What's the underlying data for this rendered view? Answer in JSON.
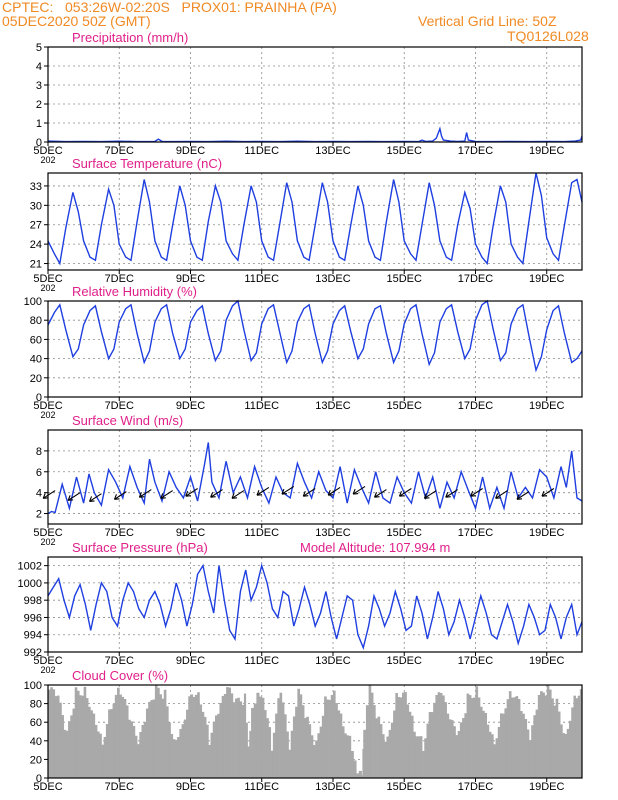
{
  "header": {
    "line1": "CPTEC:   053:26W-02:20S   PROX01: PRAINHA (PA)",
    "line2": "05DEC2020 50Z (GMT)",
    "grid_note": "Vertical Grid Line: 50Z",
    "run_id": "TQ0126L028"
  },
  "colors": {
    "series": "#1f3fe0",
    "panel_title": "#e0208a",
    "header": "#f08a24",
    "cloud_fill": "#a9a9a9",
    "grid": "#8c8c8c"
  },
  "x_axis": {
    "ticks": [
      {
        "day": 5,
        "label": "5DEC"
      },
      {
        "day": 7,
        "label": "7DEC"
      },
      {
        "day": 9,
        "label": "9DEC"
      },
      {
        "day": 11,
        "label": "11DEC"
      },
      {
        "day": 13,
        "label": "13DEC"
      },
      {
        "day": 15,
        "label": "15DEC"
      },
      {
        "day": 17,
        "label": "17DEC"
      },
      {
        "day": 19,
        "label": "19DEC"
      }
    ],
    "range_days": [
      5.0,
      19.99
    ],
    "partial_label": "202"
  },
  "chart_data": [
    {
      "type": "line",
      "title": "Precipitation (mm/h)",
      "ylim": [
        0,
        5
      ],
      "yticks": [
        0,
        1,
        2,
        3,
        4,
        5
      ],
      "grid": true,
      "x": [
        5.0,
        5.5,
        6.0,
        6.5,
        7.0,
        7.5,
        8.0,
        8.1,
        8.2,
        8.5,
        9.0,
        9.5,
        10.0,
        10.5,
        11.0,
        11.5,
        12.0,
        12.5,
        13.0,
        13.5,
        14.0,
        14.5,
        15.0,
        15.4,
        15.5,
        15.6,
        15.8,
        15.9,
        16.0,
        16.05,
        16.1,
        16.3,
        16.5,
        16.7,
        16.75,
        16.8,
        17.0,
        17.5,
        18.0,
        18.5,
        19.0,
        19.5,
        19.8,
        19.95,
        19.99
      ],
      "y": [
        0.05,
        0.02,
        0.03,
        0.02,
        0.04,
        0.02,
        0.03,
        0.15,
        0.03,
        0.02,
        0.03,
        0.02,
        0.04,
        0.02,
        0.03,
        0.02,
        0.04,
        0.02,
        0.03,
        0.02,
        0.03,
        0.02,
        0.03,
        0.02,
        0.1,
        0.03,
        0.05,
        0.2,
        0.7,
        0.3,
        0.1,
        0.05,
        0.03,
        0.05,
        0.5,
        0.1,
        0.03,
        0.02,
        0.03,
        0.02,
        0.03,
        0.02,
        0.05,
        0.1,
        0.3
      ]
    },
    {
      "type": "line",
      "title": "Surface Temperature (nC)",
      "ylim": [
        20,
        35
      ],
      "yticks": [
        21,
        24,
        27,
        30,
        33
      ],
      "grid": true,
      "x": [
        5.0,
        5.18,
        5.33,
        5.5,
        5.7,
        5.85,
        6.0,
        6.18,
        6.33,
        6.5,
        6.7,
        6.85,
        7.0,
        7.18,
        7.33,
        7.5,
        7.7,
        7.85,
        8.0,
        8.18,
        8.33,
        8.5,
        8.7,
        8.85,
        9.0,
        9.18,
        9.33,
        9.5,
        9.7,
        9.85,
        10.0,
        10.18,
        10.33,
        10.5,
        10.7,
        10.85,
        11.0,
        11.18,
        11.33,
        11.5,
        11.7,
        11.85,
        12.0,
        12.18,
        12.33,
        12.5,
        12.7,
        12.85,
        13.0,
        13.18,
        13.33,
        13.5,
        13.7,
        13.85,
        14.0,
        14.18,
        14.33,
        14.5,
        14.7,
        14.85,
        15.0,
        15.18,
        15.33,
        15.5,
        15.7,
        15.85,
        16.0,
        16.18,
        16.33,
        16.5,
        16.7,
        16.85,
        17.0,
        17.18,
        17.33,
        17.5,
        17.7,
        17.85,
        18.0,
        18.18,
        18.33,
        18.5,
        18.7,
        18.85,
        19.0,
        19.18,
        19.33,
        19.5,
        19.7,
        19.85,
        19.99
      ],
      "y": [
        24.5,
        22.5,
        21.0,
        26.5,
        32.0,
        29.0,
        24.5,
        22.0,
        21.5,
        27.0,
        32.5,
        30.0,
        24.0,
        22.0,
        21.5,
        27.5,
        34.0,
        30.5,
        24.5,
        22.0,
        21.5,
        27.0,
        33.0,
        30.0,
        24.5,
        22.0,
        21.5,
        27.5,
        33.0,
        30.5,
        24.5,
        22.5,
        21.5,
        27.0,
        33.0,
        30.5,
        24.5,
        22.0,
        21.5,
        27.0,
        33.5,
        30.5,
        24.5,
        22.0,
        21.5,
        27.0,
        33.5,
        30.5,
        24.5,
        22.0,
        21.5,
        27.0,
        33.0,
        30.0,
        24.5,
        22.0,
        21.5,
        27.5,
        34.0,
        30.5,
        24.5,
        22.5,
        21.5,
        27.0,
        33.5,
        30.0,
        24.5,
        22.0,
        21.5,
        27.0,
        32.0,
        29.5,
        24.0,
        22.0,
        21.0,
        27.0,
        33.0,
        30.5,
        24.0,
        22.0,
        21.0,
        27.5,
        35.0,
        31.5,
        25.0,
        22.5,
        21.5,
        27.0,
        33.5,
        34.0,
        30.5
      ]
    },
    {
      "type": "line",
      "title": "Relative Humidity (%)",
      "ylim": [
        0,
        100
      ],
      "yticks": [
        0,
        20,
        40,
        60,
        80,
        100
      ],
      "grid": true,
      "x": [
        5.0,
        5.18,
        5.33,
        5.5,
        5.7,
        5.85,
        6.0,
        6.18,
        6.33,
        6.5,
        6.7,
        6.85,
        7.0,
        7.18,
        7.33,
        7.5,
        7.7,
        7.85,
        8.0,
        8.18,
        8.33,
        8.5,
        8.7,
        8.85,
        9.0,
        9.18,
        9.33,
        9.5,
        9.7,
        9.85,
        10.0,
        10.18,
        10.33,
        10.5,
        10.7,
        10.85,
        11.0,
        11.18,
        11.33,
        11.5,
        11.7,
        11.85,
        12.0,
        12.18,
        12.33,
        12.5,
        12.7,
        12.85,
        13.0,
        13.18,
        13.33,
        13.5,
        13.7,
        13.85,
        14.0,
        14.18,
        14.33,
        14.5,
        14.7,
        14.85,
        15.0,
        15.18,
        15.33,
        15.5,
        15.7,
        15.85,
        16.0,
        16.18,
        16.33,
        16.5,
        16.7,
        16.85,
        17.0,
        17.18,
        17.33,
        17.5,
        17.7,
        17.85,
        18.0,
        18.18,
        18.33,
        18.5,
        18.7,
        18.85,
        19.0,
        19.18,
        19.33,
        19.5,
        19.7,
        19.85,
        19.99
      ],
      "y": [
        75,
        88,
        96,
        70,
        42,
        50,
        75,
        90,
        95,
        68,
        40,
        50,
        78,
        92,
        96,
        66,
        36,
        48,
        78,
        92,
        96,
        66,
        40,
        50,
        78,
        90,
        95,
        66,
        38,
        48,
        80,
        95,
        100,
        70,
        38,
        46,
        76,
        92,
        96,
        68,
        36,
        48,
        78,
        92,
        96,
        66,
        36,
        48,
        76,
        90,
        95,
        68,
        40,
        50,
        76,
        92,
        95,
        66,
        36,
        48,
        76,
        92,
        96,
        66,
        34,
        46,
        78,
        92,
        96,
        68,
        40,
        50,
        80,
        96,
        100,
        70,
        38,
        46,
        76,
        92,
        96,
        64,
        28,
        42,
        70,
        90,
        95,
        66,
        36,
        40,
        48
      ]
    },
    {
      "type": "line",
      "title": "Surface Wind (m/s)",
      "ylim": [
        1,
        10
      ],
      "yticks": [
        2,
        4,
        6,
        8
      ],
      "grid": true,
      "x": [
        5.0,
        5.1,
        5.2,
        5.4,
        5.6,
        5.8,
        6.0,
        6.15,
        6.3,
        6.5,
        6.7,
        6.9,
        7.1,
        7.3,
        7.5,
        7.7,
        7.85,
        8.0,
        8.2,
        8.4,
        8.6,
        8.8,
        9.0,
        9.2,
        9.4,
        9.5,
        9.6,
        9.8,
        10.0,
        10.2,
        10.4,
        10.6,
        10.8,
        11.0,
        11.2,
        11.4,
        11.6,
        11.8,
        12.0,
        12.2,
        12.4,
        12.6,
        12.8,
        13.0,
        13.2,
        13.4,
        13.6,
        13.8,
        14.0,
        14.2,
        14.4,
        14.6,
        14.8,
        15.0,
        15.2,
        15.4,
        15.6,
        15.8,
        16.0,
        16.2,
        16.4,
        16.6,
        16.8,
        17.0,
        17.2,
        17.4,
        17.6,
        17.8,
        18.0,
        18.2,
        18.4,
        18.6,
        18.8,
        19.0,
        19.2,
        19.4,
        19.55,
        19.7,
        19.85,
        19.99
      ],
      "y": [
        2.0,
        2.2,
        2.1,
        4.8,
        2.5,
        5.5,
        3.0,
        5.8,
        4.0,
        2.8,
        6.2,
        5.0,
        3.5,
        6.5,
        4.5,
        3.0,
        7.2,
        5.0,
        3.2,
        6.0,
        4.5,
        3.5,
        5.5,
        3.2,
        6.8,
        8.8,
        5.0,
        3.5,
        7.0,
        4.0,
        5.5,
        3.5,
        6.5,
        4.5,
        3.0,
        5.5,
        4.0,
        3.5,
        6.8,
        5.0,
        3.5,
        6.0,
        4.2,
        3.5,
        6.5,
        3.0,
        6.2,
        4.5,
        3.0,
        6.0,
        3.5,
        3.0,
        5.5,
        4.0,
        3.0,
        6.0,
        3.5,
        5.5,
        2.5,
        5.0,
        3.5,
        6.0,
        4.2,
        2.5,
        5.5,
        2.5,
        4.5,
        2.5,
        6.0,
        3.5,
        4.5,
        3.5,
        6.2,
        5.5,
        3.5,
        6.5,
        4.5,
        8.0,
        3.5,
        3.2
      ],
      "wind_barbs_days": [
        5.2,
        5.9,
        6.5,
        7.2,
        7.9,
        8.5,
        9.2,
        9.9,
        10.5,
        11.2,
        11.9,
        12.5,
        13.2,
        13.9,
        14.5,
        15.2,
        15.9,
        16.5,
        17.2,
        17.9,
        18.5,
        19.2
      ],
      "wind_barbs_speed": [
        4.2,
        4.0,
        3.9,
        4.1,
        4.3,
        4.2,
        4.4,
        4.3,
        4.2,
        4.5,
        4.6,
        4.4,
        4.5,
        4.6,
        4.3,
        4.4,
        4.2,
        4.3,
        4.4,
        4.2,
        4.1,
        4.4
      ]
    },
    {
      "type": "line",
      "title": "Surface Pressure (hPa)",
      "annotation": "Model Altitude: 107.994 m",
      "ylim": [
        992,
        1003
      ],
      "yticks": [
        992,
        994,
        996,
        998,
        1000,
        1002
      ],
      "grid": true,
      "x": [
        5.0,
        5.15,
        5.3,
        5.45,
        5.6,
        5.75,
        5.9,
        6.05,
        6.2,
        6.35,
        6.5,
        6.65,
        6.8,
        6.95,
        7.1,
        7.25,
        7.4,
        7.55,
        7.7,
        7.85,
        8.0,
        8.15,
        8.3,
        8.45,
        8.6,
        8.75,
        8.9,
        9.05,
        9.2,
        9.35,
        9.5,
        9.65,
        9.8,
        9.95,
        10.1,
        10.25,
        10.4,
        10.55,
        10.7,
        10.85,
        11.0,
        11.15,
        11.3,
        11.45,
        11.6,
        11.75,
        11.9,
        12.05,
        12.2,
        12.35,
        12.5,
        12.65,
        12.8,
        12.95,
        13.1,
        13.25,
        13.4,
        13.55,
        13.7,
        13.85,
        14.0,
        14.15,
        14.3,
        14.45,
        14.6,
        14.75,
        14.9,
        15.05,
        15.2,
        15.35,
        15.5,
        15.65,
        15.8,
        15.95,
        16.1,
        16.25,
        16.4,
        16.55,
        16.7,
        16.85,
        17.0,
        17.15,
        17.3,
        17.45,
        17.6,
        17.75,
        17.9,
        18.05,
        18.2,
        18.35,
        18.5,
        18.65,
        18.8,
        18.95,
        19.1,
        19.25,
        19.4,
        19.55,
        19.7,
        19.85,
        19.99
      ],
      "y": [
        998.5,
        999.5,
        1000.5,
        998.0,
        996.0,
        998.5,
        999.8,
        997.5,
        994.5,
        997.5,
        1000.0,
        999.0,
        996.0,
        995.0,
        998.0,
        1000.0,
        999.0,
        997.0,
        996.0,
        998.0,
        999.0,
        997.5,
        995.0,
        997.0,
        1000.0,
        998.0,
        995.0,
        997.5,
        1001.0,
        1002.0,
        999.0,
        996.5,
        1002.0,
        998.0,
        994.5,
        993.5,
        999.0,
        1001.5,
        998.0,
        999.5,
        1002.0,
        1000.0,
        997.0,
        996.0,
        999.0,
        998.5,
        995.0,
        997.0,
        999.5,
        997.5,
        995.0,
        996.5,
        999.0,
        996.0,
        993.5,
        996.0,
        998.5,
        998.0,
        994.0,
        992.5,
        995.0,
        998.5,
        997.0,
        995.0,
        996.5,
        999.0,
        997.0,
        994.5,
        995.0,
        998.5,
        996.5,
        993.5,
        996.0,
        999.0,
        997.0,
        994.0,
        995.5,
        998.0,
        996.0,
        993.5,
        996.0,
        998.5,
        996.5,
        994.0,
        993.5,
        995.5,
        997.5,
        995.5,
        993.0,
        995.0,
        997.5,
        996.0,
        994.0,
        994.5,
        997.5,
        996.0,
        993.5,
        996.0,
        997.5,
        994.0,
        995.5
      ]
    },
    {
      "type": "area",
      "title": "Cloud Cover (%)",
      "ylim": [
        0,
        100
      ],
      "yticks": [
        0,
        20,
        40,
        60,
        80,
        100
      ],
      "grid": true,
      "x": [
        5.0,
        5.25,
        5.5,
        5.75,
        6.0,
        6.25,
        6.5,
        6.75,
        7.0,
        7.25,
        7.5,
        7.75,
        8.0,
        8.25,
        8.5,
        8.75,
        9.0,
        9.25,
        9.5,
        9.75,
        10.0,
        10.25,
        10.5,
        10.6,
        10.7,
        10.85,
        11.0,
        11.25,
        11.5,
        11.75,
        12.0,
        12.25,
        12.5,
        12.75,
        13.0,
        13.25,
        13.5,
        13.65,
        13.8,
        13.85,
        14.0,
        14.25,
        14.5,
        14.75,
        15.0,
        15.25,
        15.5,
        15.75,
        16.0,
        16.25,
        16.5,
        16.75,
        17.0,
        17.25,
        17.5,
        17.75,
        18.0,
        18.25,
        18.5,
        18.75,
        19.0,
        19.25,
        19.5,
        19.75,
        19.99
      ],
      "y": [
        95,
        85,
        45,
        92,
        95,
        70,
        40,
        80,
        95,
        65,
        35,
        70,
        95,
        90,
        40,
        60,
        95,
        85,
        40,
        70,
        95,
        80,
        85,
        30,
        75,
        95,
        92,
        35,
        95,
        30,
        92,
        60,
        35,
        85,
        95,
        60,
        35,
        10,
        5,
        50,
        95,
        60,
        40,
        90,
        95,
        55,
        35,
        75,
        92,
        60,
        45,
        85,
        95,
        70,
        40,
        75,
        92,
        75,
        40,
        85,
        95,
        80,
        45,
        90,
        96
      ]
    }
  ]
}
